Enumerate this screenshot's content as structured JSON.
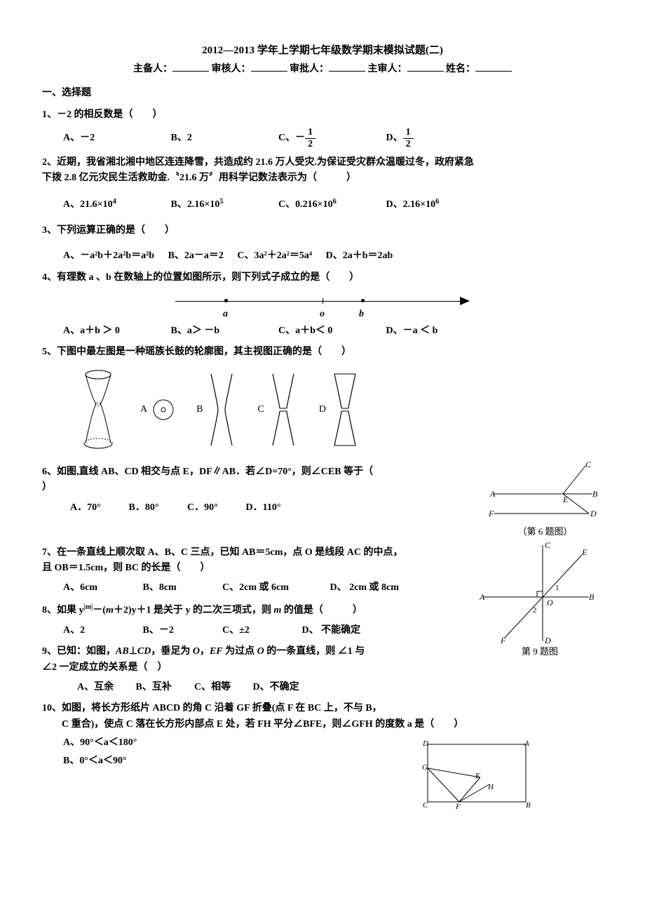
{
  "title": "2012—2013 学年上学期七年级数学期末模拟试题(二)",
  "header": {
    "prep": "主备人：",
    "review": "审核人：",
    "approve": "审批人：",
    "chief": "主审人：",
    "name": "姓名："
  },
  "section1": "一、选择题",
  "q1": {
    "text": "1、－2 的相反数是（　　）",
    "a": "A、－2",
    "b": "B、2",
    "c_prefix": "C、－",
    "d_prefix": "D、",
    "frac_num": "1",
    "frac_den": "2"
  },
  "q2": {
    "line1": "2、近期，我省湘北湘中地区连连降雪，共造成约 21.6 万人受灾.为保证受灾群众温暖过冬，政府紧急",
    "line2": "下拨 2.8 亿元灾民生活救助金.〝21.6 万〞用科学记数法表示为（　　　）",
    "a": "A、21.6×10",
    "a_exp": "4",
    "b": "B、2.16×10",
    "b_exp": "5",
    "c": "C、0.216×10",
    "c_exp": "6",
    "d": "D、2.16×10",
    "d_exp": "6"
  },
  "q3": {
    "text": "3、下列运算正确的是（　　）",
    "a": "A、－a²b＋2a²b＝a²b",
    "b": "B、2a－a＝2",
    "c": "C、3a²＋2a²＝5a⁴",
    "d": "D、2a＋b＝2ab"
  },
  "q4": {
    "text": "4、有理数 a 、b 在数轴上的位置如图所示，则下列式子成立的是（　　）",
    "a": "A、a＋b ＞ 0",
    "b": "B、a＞ －b",
    "c": "C、a＋b＜ 0",
    "d": "D、－a ＜ b",
    "labels": {
      "a": "a",
      "o": "o",
      "b": "b"
    }
  },
  "q5": {
    "text": "5、下图中最左图是一种瑶族长鼓的轮廓图，其主视图正确的是（　　）",
    "a": "A",
    "b": "B",
    "c": "C",
    "d": "D"
  },
  "q6": {
    "text1": "6、如图,直线 AB、CD 相交与点 E，DF∥AB．若∠D=70°，则∠CEB 等于（　",
    "text2": "）",
    "a": "A．70°",
    "b": "B．80°",
    "c": "C．90°",
    "d": "D．110°",
    "caption": "（第 6 题图）",
    "labels": {
      "A": "A",
      "B": "B",
      "C": "C",
      "D": "D",
      "E": "E",
      "F": "F"
    }
  },
  "q7": {
    "line1": "7、在一条直线上顺次取 A、B、C 三点，已知 AB＝5cm，点 O 是线段 AC 的中点，",
    "line2": "且 OB＝1.5cm，则 BC 的长是（　　）",
    "a": "A、6cm",
    "b": "B、8cm",
    "c": "C、2cm 或 6cm",
    "d": "D、 2cm 或 8cm"
  },
  "q8": {
    "text": "8、如果 y<sup>|<i>m</i>|</sup>－(<i>m</i>＋2)y＋1 是关于 y 的二次三项式，则 <i>m</i> 的值是（　　　）",
    "a": "A、2",
    "b": "B、－2",
    "c": "C、±2",
    "d": "D、 不能确定"
  },
  "q9": {
    "line1": "9、已知：如图，<i>AB</i>⊥<i>CD</i>，垂足为 <i>O</i>，<i>EF</i> 为过点 <i>O</i> 的一条直线，则 ∠1 与",
    "line2": "∠2 一定成立的关系是（　）",
    "a": "A、互余",
    "b": "B、互补",
    "c": "C、相等",
    "d": "D、不确定",
    "caption": "第 9 题图",
    "labels": {
      "A": "A",
      "B": "B",
      "C": "C",
      "D": "D",
      "E": "E",
      "F": "F",
      "O": "O",
      "n1": "1",
      "n2": "2"
    }
  },
  "q10": {
    "line1": "10、如图，将长方形纸片 ABCD 的角 C 沿着 GF 折叠(点 F 在 BC 上，不与 B，",
    "line2": "　　C 重合)，使点 C 落在长方形内部点 E 处，若 FH 平分∠BFE，则∠GFH 的度数 a 是（　　）",
    "a": "A、90°＜a＜180°",
    "b": "B、0°＜a＜90°",
    "labels": {
      "A": "A",
      "B": "B",
      "C": "C",
      "D": "D",
      "E": "E",
      "F": "F",
      "G": "G",
      "H": "H"
    }
  }
}
